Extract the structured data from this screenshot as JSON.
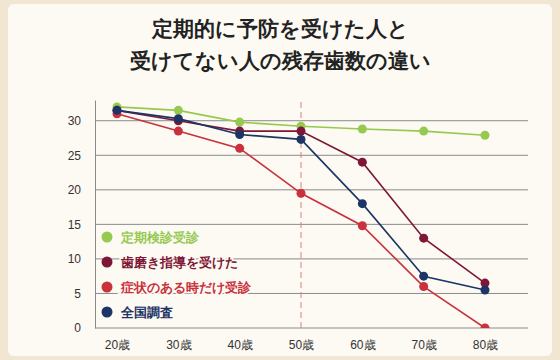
{
  "chart_data": {
    "type": "line",
    "title": "定期的に予防を受けた人と\n受けてない人の残存歯数の違い",
    "categories": [
      "20歳",
      "30歳",
      "40歳",
      "50歳",
      "60歳",
      "70歳",
      "80歳"
    ],
    "series": [
      {
        "name": "定期検診受診",
        "color": "#96c94f",
        "values": [
          32,
          31.5,
          29.8,
          29.2,
          28.8,
          28.5,
          27.9
        ]
      },
      {
        "name": "歯磨き指導を受けた",
        "color": "#7e1737",
        "values": [
          31.5,
          30,
          28.5,
          28.5,
          24,
          13,
          6.5
        ]
      },
      {
        "name": "症状のある時だけ受診",
        "color": "#c9313c",
        "values": [
          31,
          28.5,
          26,
          19.5,
          14.8,
          6,
          0
        ]
      },
      {
        "name": "全国調査",
        "color": "#1d3566",
        "values": [
          31.5,
          30.3,
          28,
          27.3,
          18,
          7.5,
          5.5
        ]
      }
    ],
    "ylim": [
      0,
      33
    ],
    "yticks": [
      0,
      5,
      10,
      15,
      20,
      25,
      30
    ],
    "grid": true,
    "legend": "lower left",
    "marker": "circle"
  }
}
